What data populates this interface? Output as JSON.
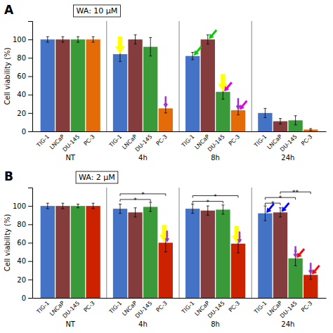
{
  "chart_data": [
    {
      "type": "bar",
      "title": "WA: 10 μM",
      "y_label": "Cell viability (%)",
      "categories": [
        "NT",
        "4h",
        "8h",
        "24h"
      ],
      "series": [
        {
          "name": "TIG-1",
          "color": "#4472C4",
          "values": [
            100,
            84,
            82,
            20
          ],
          "errors": [
            3,
            8,
            4,
            5
          ]
        },
        {
          "name": "LNCaP",
          "color": "#843c3c",
          "values": [
            100,
            100,
            100,
            11
          ],
          "errors": [
            3,
            5,
            5,
            3
          ]
        },
        {
          "name": "DU-145",
          "color": "#3a9a3a",
          "values": [
            100,
            92,
            43,
            12
          ],
          "errors": [
            3,
            10,
            8,
            5
          ]
        },
        {
          "name": "PC-3",
          "color": "#E36C09",
          "values": [
            100,
            25,
            23,
            2
          ],
          "errors": [
            3,
            5,
            5,
            1
          ]
        }
      ],
      "ylim": [
        0,
        120
      ],
      "yticks": [
        0,
        20,
        40,
        60,
        80,
        100
      ],
      "grid": false,
      "annotations": [
        {
          "text": "A"
        },
        {
          "category": "4h",
          "series": "TIG-1",
          "marker": "fat-arrow",
          "color": "yellow"
        },
        {
          "category": "4h",
          "series": "PC-3",
          "marker": "thin-arrow",
          "color": "#9933cc"
        },
        {
          "category": "8h",
          "series": "TIG-1",
          "marker": "diagonal-arrow",
          "color": "#00cc00"
        },
        {
          "category": "8h",
          "series": "LNCaP",
          "marker": "diagonal-arrow",
          "color": "#00cc00"
        },
        {
          "category": "8h",
          "series": "PC-3",
          "marker": "thin-arrow",
          "color": "#9933cc"
        },
        {
          "category": "8h",
          "series": "DU-145",
          "marker": "fat-arrow",
          "color": "yellow"
        },
        {
          "category": "8h",
          "series": "DU-145",
          "marker": "diagonal-arrow",
          "color": "#dd00dd"
        },
        {
          "category": "8h",
          "series": "PC-3",
          "marker": "diagonal-arrow",
          "color": "#dd00dd"
        }
      ]
    },
    {
      "type": "bar",
      "title": "WA: 2 μM",
      "y_label": "Cell viability (%)",
      "categories": [
        "NT",
        "4h",
        "8h",
        "24h"
      ],
      "series": [
        {
          "name": "TIG-1",
          "color": "#4472C4",
          "values": [
            100,
            97,
            97,
            92
          ],
          "errors": [
            3,
            5,
            5,
            8
          ]
        },
        {
          "name": "LNCaP",
          "color": "#843c3c",
          "values": [
            100,
            93,
            95,
            93
          ],
          "errors": [
            3,
            5,
            5,
            5
          ]
        },
        {
          "name": "DU-145",
          "color": "#3a9a3a",
          "values": [
            100,
            99,
            96,
            43
          ],
          "errors": [
            2,
            5,
            5,
            8
          ]
        },
        {
          "name": "PC-3",
          "color": "#cc2200",
          "values": [
            100,
            60,
            59,
            25
          ],
          "errors": [
            3,
            10,
            10,
            5
          ]
        }
      ],
      "ylim": [
        0,
        120
      ],
      "yticks": [
        0,
        20,
        40,
        60,
        80,
        100
      ],
      "grid": false,
      "annotations": [
        {
          "text": "B"
        },
        {
          "category": "4h",
          "series": "PC-3",
          "marker": "fat-arrow",
          "color": "yellow"
        },
        {
          "category": "4h",
          "series": "PC-3",
          "marker": "thin-arrow",
          "color": "#9933cc"
        },
        {
          "category": "8h",
          "series": "PC-3",
          "marker": "fat-arrow",
          "color": "yellow"
        },
        {
          "category": "8h",
          "series": "PC-3",
          "marker": "thin-arrow",
          "color": "#9933cc"
        },
        {
          "category": "24h",
          "series": "TIG-1",
          "marker": "diagonal-arrow",
          "color": "blue"
        },
        {
          "category": "24h",
          "series": "LNCaP",
          "marker": "diagonal-arrow",
          "color": "blue"
        },
        {
          "category": "24h",
          "series": "DU-145",
          "marker": "diagonal-arrow",
          "color": "red"
        },
        {
          "category": "24h",
          "series": "PC-3",
          "marker": "diagonal-arrow",
          "color": "red"
        },
        {
          "category": "24h",
          "series": "DU-145",
          "marker": "thin-arrow",
          "color": "#9933cc"
        },
        {
          "category": "24h",
          "series": "PC-3",
          "marker": "thin-arrow",
          "color": "#9933cc"
        },
        {
          "text": "*",
          "category": "4h",
          "from": "TIG-1",
          "to": "DU-145"
        },
        {
          "text": "*",
          "category": "4h",
          "from": "TIG-1",
          "to": "PC-3"
        },
        {
          "text": "*",
          "category": "8h",
          "from": "TIG-1",
          "to": "DU-145"
        },
        {
          "text": "*",
          "category": "8h",
          "from": "TIG-1",
          "to": "PC-3"
        },
        {
          "text": "*",
          "category": "24h",
          "from": "TIG-1",
          "to": "LNCaP"
        },
        {
          "text": "*",
          "category": "24h",
          "from": "TIG-1",
          "to": "DU-145"
        },
        {
          "text": "**",
          "category": "24h",
          "from": "LNCaP",
          "to": "PC-3"
        }
      ]
    }
  ]
}
